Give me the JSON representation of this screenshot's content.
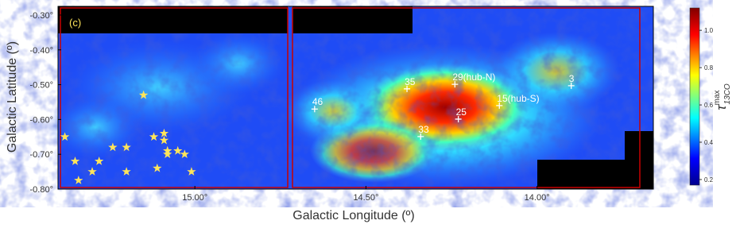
{
  "chart_data": {
    "type": "map",
    "panel_label": "(c)",
    "xlabel": "Galactic Longitude (º)",
    "ylabel": "Galactic Latitude (º)",
    "xlim": [
      15.4,
      13.66
    ],
    "ylim": [
      -0.8,
      -0.275
    ],
    "xticks": [
      {
        "value": 15.0,
        "label": "15.00°"
      },
      {
        "value": 14.5,
        "label": "14.50°"
      },
      {
        "value": 14.0,
        "label": "14.00°"
      }
    ],
    "yticks": [
      {
        "value": -0.3,
        "label": "-0.30°"
      },
      {
        "value": -0.4,
        "label": "-0.40°"
      },
      {
        "value": -0.5,
        "label": "-0.50°"
      },
      {
        "value": -0.6,
        "label": "-0.60°"
      },
      {
        "value": -0.7,
        "label": "-0.70°"
      },
      {
        "value": -0.8,
        "label": "-0.80°"
      }
    ],
    "colorbar": {
      "label": {
        "symbol": "τ",
        "sup": "max",
        "sub": "13CO"
      },
      "zlim": [
        0.17,
        1.12
      ],
      "ticks": [
        0.2,
        0.4,
        0.6,
        0.8,
        {
          "value": 1.0,
          "label": "1.0"
        }
      ]
    },
    "annotations": [
      {
        "text": "35",
        "x": 14.38,
        "y": -0.512
      },
      {
        "text": "29(hub-N)",
        "x": 14.24,
        "y": -0.499
      },
      {
        "text": "46",
        "x": 14.65,
        "y": -0.57
      },
      {
        "text": "25",
        "x": 14.23,
        "y": -0.599
      },
      {
        "text": "33",
        "x": 14.34,
        "y": -0.649
      },
      {
        "text": "15(hub-S)",
        "x": 14.11,
        "y": -0.56
      },
      {
        "text": "3",
        "x": 13.9,
        "y": -0.503
      }
    ],
    "markers": {
      "color": "#ffe45a",
      "x": [
        15.15,
        15.12,
        15.09,
        15.09,
        15.08,
        15.08,
        15.05,
        15.03,
        15.24,
        15.2,
        15.35,
        15.28,
        15.3,
        15.2,
        15.11,
        15.01,
        15.34,
        15.38
      ],
      "y": [
        -0.53,
        -0.65,
        -0.66,
        -0.64,
        -0.69,
        -0.7,
        -0.69,
        -0.7,
        -0.68,
        -0.68,
        -0.72,
        -0.72,
        -0.75,
        -0.75,
        -0.74,
        -0.75,
        -0.775,
        -0.65
      ]
    }
  }
}
